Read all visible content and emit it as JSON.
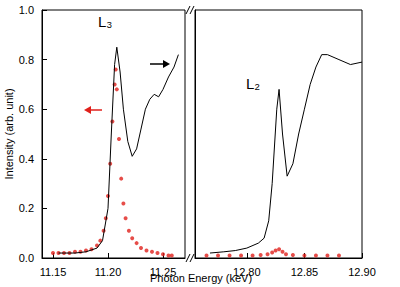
{
  "chart_data": {
    "type": "line",
    "xlabel": "Photon Energy (keV)",
    "ylabel": "Intensity (arb. unit)",
    "ylim": [
      0,
      1
    ],
    "yticks": [
      {
        "value": 0,
        "label": "0.0"
      },
      0.2,
      0.4,
      0.6,
      0.8,
      {
        "value": 1,
        "label": "1.0"
      }
    ],
    "panels": [
      {
        "annotation": "L₃",
        "xlim": [
          11.14,
          11.27
        ],
        "xticks": [
          {
            "value": 11.15,
            "label": "11.15"
          },
          {
            "value": 11.2,
            "label": "11.20"
          },
          {
            "value": 11.25,
            "label": "11.25"
          }
        ],
        "series": [
          {
            "type": "line",
            "color": "#000000",
            "line_style": "solid",
            "x": [
              11.155,
              11.17,
              11.18,
              11.19,
              11.195,
              11.2,
              11.203,
              11.206,
              11.208,
              11.211,
              11.214,
              11.218,
              11.222,
              11.226,
              11.23,
              11.234,
              11.238,
              11.242,
              11.246,
              11.25,
              11.255,
              11.26,
              11.264
            ],
            "values": [
              0.02,
              0.02,
              0.025,
              0.04,
              0.07,
              0.2,
              0.5,
              0.78,
              0.85,
              0.75,
              0.6,
              0.47,
              0.41,
              0.44,
              0.52,
              0.6,
              0.64,
              0.66,
              0.65,
              0.68,
              0.73,
              0.77,
              0.82
            ]
          },
          {
            "type": "scatter",
            "color": "#e0201b",
            "marker": "circle",
            "x": [
              11.15,
              11.155,
              11.16,
              11.165,
              11.17,
              11.175,
              11.18,
              11.185,
              11.19,
              11.193,
              11.196,
              11.198,
              11.2,
              11.202,
              11.204,
              11.206,
              11.207,
              11.208,
              11.21,
              11.212,
              11.214,
              11.216,
              11.219,
              11.222,
              11.226,
              11.23,
              11.235,
              11.24,
              11.245,
              11.25,
              11.255,
              11.258
            ],
            "values": [
              0.02,
              0.02,
              0.02,
              0.02,
              0.025,
              0.025,
              0.03,
              0.035,
              0.05,
              0.07,
              0.11,
              0.16,
              0.25,
              0.38,
              0.55,
              0.7,
              0.76,
              0.68,
              0.48,
              0.32,
              0.22,
              0.16,
              0.11,
              0.08,
              0.06,
              0.04,
              0.03,
              0.025,
              0.02,
              0.015,
              0.01,
              0.01
            ]
          }
        ]
      },
      {
        "annotation": "L₂",
        "xlim": [
          12.755,
          12.9
        ],
        "xticks": [
          {
            "value": 12.8,
            "label": "12.80"
          },
          {
            "value": 12.85,
            "label": "12.85"
          },
          {
            "value": 12.9,
            "label": "12.90"
          }
        ],
        "series": [
          {
            "type": "line",
            "color": "#000000",
            "line_style": "solid",
            "x": [
              12.768,
              12.78,
              12.79,
              12.8,
              12.81,
              12.815,
              12.819,
              12.822,
              12.826,
              12.828,
              12.831,
              12.835,
              12.84,
              12.845,
              12.85,
              12.855,
              12.86,
              12.865,
              12.87,
              12.88,
              12.89,
              12.9
            ],
            "values": [
              0.02,
              0.025,
              0.03,
              0.04,
              0.06,
              0.08,
              0.15,
              0.3,
              0.6,
              0.68,
              0.5,
              0.33,
              0.38,
              0.5,
              0.6,
              0.7,
              0.77,
              0.82,
              0.82,
              0.8,
              0.78,
              0.79
            ]
          },
          {
            "type": "scatter",
            "color": "#e0201b",
            "marker": "circle",
            "x": [
              12.765,
              12.775,
              12.785,
              12.795,
              12.805,
              12.812,
              12.818,
              12.822,
              12.825,
              12.828,
              12.831,
              12.834,
              12.84,
              12.85,
              12.86,
              12.87,
              12.88
            ],
            "values": [
              0.01,
              0.01,
              0.01,
              0.01,
              0.01,
              0.012,
              0.015,
              0.022,
              0.03,
              0.035,
              0.025,
              0.015,
              0.012,
              0.01,
              0.01,
              0.01,
              0.01
            ]
          }
        ]
      }
    ]
  }
}
